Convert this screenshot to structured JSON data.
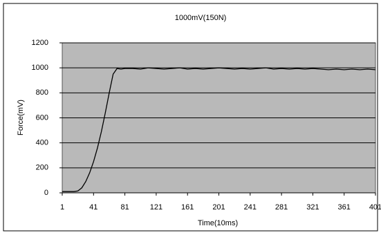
{
  "chart_data": {
    "type": "line",
    "title": "1000mV(150N)",
    "x_label": "Time(10ms)",
    "y_label": "Force(mV)",
    "x": [
      1,
      6,
      11,
      16,
      21,
      26,
      31,
      36,
      41,
      46,
      51,
      56,
      61,
      66,
      71,
      76,
      81,
      91,
      101,
      111,
      121,
      131,
      141,
      151,
      161,
      171,
      181,
      191,
      201,
      211,
      221,
      231,
      241,
      251,
      261,
      271,
      281,
      291,
      301,
      311,
      321,
      331,
      341,
      351,
      361,
      371,
      381,
      391,
      401
    ],
    "series": [
      {
        "name": "Force",
        "color": "#000000",
        "values": [
          10,
          10,
          10,
          10,
          15,
          40,
          90,
          160,
          250,
          360,
          490,
          640,
          800,
          950,
          995,
          990,
          995,
          995,
          990,
          1000,
          995,
          990,
          995,
          1000,
          990,
          995,
          990,
          995,
          1000,
          995,
          990,
          995,
          990,
          995,
          1000,
          990,
          995,
          990,
          995,
          990,
          995,
          990,
          985,
          990,
          985,
          990,
          985,
          990,
          985
        ]
      }
    ],
    "xlim": [
      1,
      401
    ],
    "xticks": [
      1,
      41,
      81,
      121,
      161,
      201,
      241,
      281,
      321,
      361,
      401
    ],
    "ylim": [
      0,
      1200
    ],
    "yticks": [
      0,
      200,
      400,
      600,
      800,
      1000,
      1200
    ],
    "grid": true
  }
}
